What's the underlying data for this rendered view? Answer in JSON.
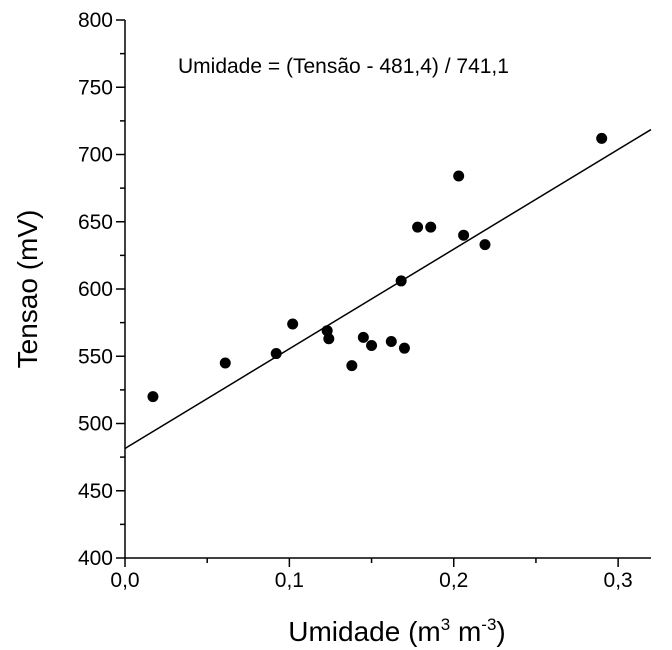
{
  "chart_data": {
    "type": "scatter",
    "title": "",
    "xlabel": {
      "text": "Umidade (m",
      "sup1": "3",
      "mid": " m",
      "sup2": "-3",
      "end": ")"
    },
    "ylabel": "Tensao (mV)",
    "annotation": "Umidade = (Tensão - 481,4) / 741,1",
    "xlim": [
      0.0,
      0.32
    ],
    "ylim": [
      400,
      800
    ],
    "x_ticks": [
      {
        "value": 0.0,
        "label": "0,0"
      },
      {
        "value": 0.1,
        "label": "0,1"
      },
      {
        "value": 0.2,
        "label": "0,2"
      },
      {
        "value": 0.3,
        "label": "0,3"
      }
    ],
    "y_ticks": [
      {
        "value": 400,
        "label": "400"
      },
      {
        "value": 450,
        "label": "450"
      },
      {
        "value": 500,
        "label": "500"
      },
      {
        "value": 550,
        "label": "550"
      },
      {
        "value": 600,
        "label": "600"
      },
      {
        "value": 650,
        "label": "650"
      },
      {
        "value": 700,
        "label": "700"
      },
      {
        "value": 750,
        "label": "750"
      },
      {
        "value": 800,
        "label": "800"
      }
    ],
    "grid": false,
    "points": [
      {
        "x": 0.017,
        "y": 520
      },
      {
        "x": 0.061,
        "y": 545
      },
      {
        "x": 0.092,
        "y": 552
      },
      {
        "x": 0.102,
        "y": 574
      },
      {
        "x": 0.123,
        "y": 569
      },
      {
        "x": 0.124,
        "y": 563
      },
      {
        "x": 0.138,
        "y": 543
      },
      {
        "x": 0.145,
        "y": 564
      },
      {
        "x": 0.15,
        "y": 558
      },
      {
        "x": 0.162,
        "y": 561
      },
      {
        "x": 0.168,
        "y": 606
      },
      {
        "x": 0.17,
        "y": 556
      },
      {
        "x": 0.178,
        "y": 646
      },
      {
        "x": 0.186,
        "y": 646
      },
      {
        "x": 0.203,
        "y": 684
      },
      {
        "x": 0.206,
        "y": 640
      },
      {
        "x": 0.219,
        "y": 633
      },
      {
        "x": 0.29,
        "y": 712
      }
    ],
    "fit_line": {
      "intercept": 481.4,
      "slope": 741.1,
      "x_start": 0.0,
      "x_end": 0.32
    },
    "colors": {
      "points": "#000000",
      "line": "#000000",
      "axes": "#000000"
    }
  }
}
